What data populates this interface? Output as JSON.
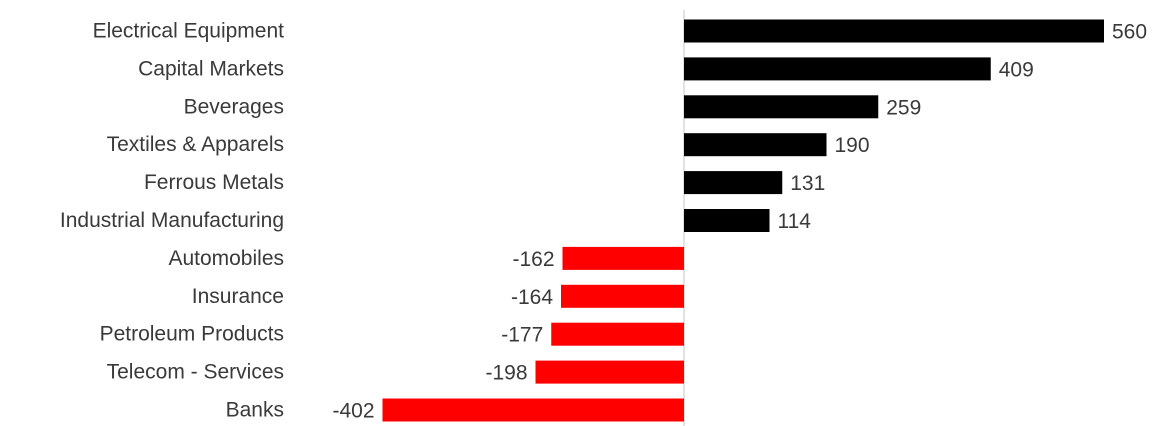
{
  "chart_data": {
    "type": "bar",
    "orientation": "horizontal",
    "title": "",
    "xlabel": "",
    "ylabel": "",
    "categories": [
      "Electrical Equipment",
      "Capital Markets",
      "Beverages",
      "Textiles & Apparels",
      "Ferrous Metals",
      "Industrial Manufacturing",
      "Automobiles",
      "Insurance",
      "Petroleum Products",
      "Telecom - Services",
      "Banks"
    ],
    "values": [
      560,
      409,
      259,
      190,
      131,
      114,
      -162,
      -164,
      -177,
      -198,
      -402
    ],
    "value_labels": [
      "560",
      "409",
      "259",
      "190",
      "131",
      "114",
      "-162",
      "-164",
      "-177",
      "-198",
      "-402"
    ],
    "xlim": [
      -402,
      560
    ],
    "grid": false,
    "legend": "none",
    "colors": {
      "positive": "#000000",
      "negative": "#ff0000",
      "axis": "#d9d9d9",
      "text": "#3a3a3a"
    }
  }
}
